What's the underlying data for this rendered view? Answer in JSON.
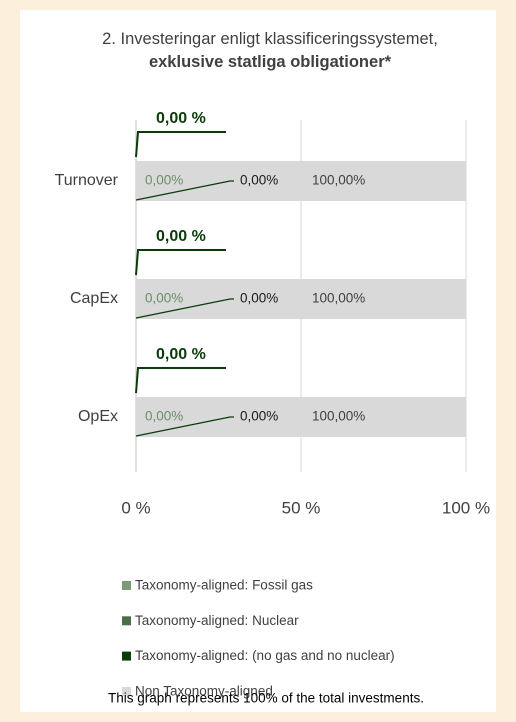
{
  "chart_data": {
    "type": "stacked-barh",
    "title": "2. Investeringar enligt klassificeringssystemet,",
    "title_emphasis": "exklusive statliga obligationer*",
    "categories": [
      "Turnover",
      "CapEx",
      "OpEx"
    ],
    "series": [
      {
        "name": "Taxonomy-aligned: Fossil gas",
        "color": "#7a9a7a",
        "values": [
          0,
          0,
          0
        ],
        "value_labels": [
          "0,00%",
          "0,00%",
          "0,00%"
        ]
      },
      {
        "name": "Taxonomy-aligned: Nuclear",
        "color": "#4a6e4a",
        "values": [
          0,
          0,
          0
        ],
        "value_labels": [
          "0,00%",
          "0,00%",
          "0,00%"
        ]
      },
      {
        "name": "Taxonomy-aligned: (no gas and no nuclear)",
        "color": "#0b3b0b",
        "values": [
          0,
          0,
          0
        ],
        "value_labels": [
          "0,00 %",
          "0,00 %",
          "0,00 %"
        ]
      },
      {
        "name": "Non Taxonomy-aligned",
        "color": "#d9d9d9",
        "values": [
          100,
          100,
          100
        ],
        "value_labels": [
          "100,00%",
          "100,00%",
          "100,00%"
        ]
      }
    ],
    "xlim": [
      0,
      100
    ],
    "xticks": [
      {
        "value": 0,
        "label": "0 %"
      },
      {
        "value": 50,
        "label": "50 %"
      },
      {
        "value": 100,
        "label": "100 %"
      }
    ],
    "grid": true,
    "note": "This graph represents 100% of the total investments."
  }
}
